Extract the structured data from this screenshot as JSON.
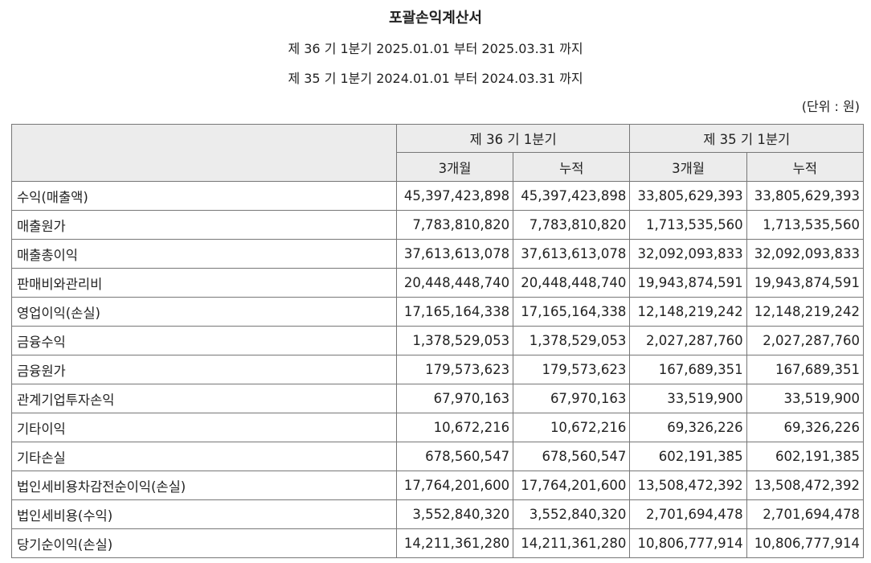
{
  "header": {
    "title": "포괄손익계산서",
    "period_current": "제 36 기 1분기 2025.01.01 부터 2025.03.31 까지",
    "period_prior": "제 35 기 1분기 2024.01.01 부터 2024.03.31 까지",
    "unit": "(단위 : 원)"
  },
  "table": {
    "group_headers": [
      "제 36 기 1분기",
      "제 35 기 1분기"
    ],
    "sub_headers": [
      "3개월",
      "누적",
      "3개월",
      "누적"
    ],
    "rows": [
      {
        "label": "수익(매출액)",
        "values": [
          "45,397,423,898",
          "45,397,423,898",
          "33,805,629,393",
          "33,805,629,393"
        ]
      },
      {
        "label": "매출원가",
        "values": [
          "7,783,810,820",
          "7,783,810,820",
          "1,713,535,560",
          "1,713,535,560"
        ]
      },
      {
        "label": "매출총이익",
        "values": [
          "37,613,613,078",
          "37,613,613,078",
          "32,092,093,833",
          "32,092,093,833"
        ]
      },
      {
        "label": "판매비와관리비",
        "values": [
          "20,448,448,740",
          "20,448,448,740",
          "19,943,874,591",
          "19,943,874,591"
        ]
      },
      {
        "label": "영업이익(손실)",
        "values": [
          "17,165,164,338",
          "17,165,164,338",
          "12,148,219,242",
          "12,148,219,242"
        ]
      },
      {
        "label": "금융수익",
        "values": [
          "1,378,529,053",
          "1,378,529,053",
          "2,027,287,760",
          "2,027,287,760"
        ]
      },
      {
        "label": "금융원가",
        "values": [
          "179,573,623",
          "179,573,623",
          "167,689,351",
          "167,689,351"
        ]
      },
      {
        "label": "관계기업투자손익",
        "values": [
          "67,970,163",
          "67,970,163",
          "33,519,900",
          "33,519,900"
        ]
      },
      {
        "label": "기타이익",
        "values": [
          "10,672,216",
          "10,672,216",
          "69,326,226",
          "69,326,226"
        ]
      },
      {
        "label": "기타손실",
        "values": [
          "678,560,547",
          "678,560,547",
          "602,191,385",
          "602,191,385"
        ]
      },
      {
        "label": "법인세비용차감전순이익(손실)",
        "values": [
          "17,764,201,600",
          "17,764,201,600",
          "13,508,472,392",
          "13,508,472,392"
        ]
      },
      {
        "label": "법인세비용(수익)",
        "values": [
          "3,552,840,320",
          "3,552,840,320",
          "2,701,694,478",
          "2,701,694,478"
        ]
      },
      {
        "label": "당기순이익(손실)",
        "values": [
          "14,211,361,280",
          "14,211,361,280",
          "10,806,777,914",
          "10,806,777,914"
        ]
      }
    ]
  }
}
